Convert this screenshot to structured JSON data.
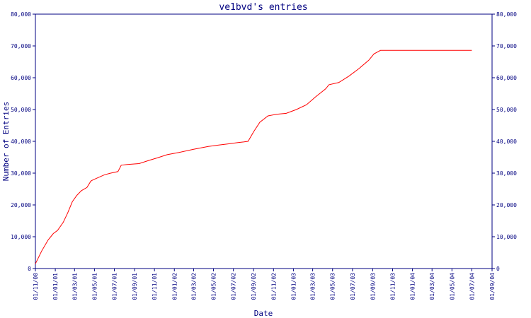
{
  "chart_data": {
    "type": "line",
    "title": "ve1bvd's entries",
    "xlabel": "Date",
    "ylabel": "Number of Entries",
    "ylim": [
      0,
      80000
    ],
    "y_ticks": [
      0,
      10000,
      20000,
      30000,
      40000,
      50000,
      60000,
      70000,
      80000
    ],
    "y_tick_labels": [
      "0",
      "10,000",
      "20,000",
      "30,000",
      "40,000",
      "50,000",
      "60,000",
      "70,000",
      "80,000"
    ],
    "right_axis_mirrors_left": true,
    "x_tick_labels": [
      "01/11/00",
      "01/01/01",
      "01/03/01",
      "01/05/01",
      "01/07/01",
      "01/09/01",
      "01/11/01",
      "01/01/02",
      "01/03/02",
      "01/05/02",
      "01/07/02",
      "01/09/02",
      "01/11/02",
      "01/01/03",
      "01/03/03",
      "01/05/03",
      "01/07/03",
      "01/09/03",
      "01/11/03",
      "01/01/04",
      "01/03/04",
      "01/05/04",
      "01/07/04",
      "01/09/04"
    ],
    "x_tick_dates": [
      "2000-11-01",
      "2001-01-01",
      "2001-03-01",
      "2001-05-01",
      "2001-07-01",
      "2001-09-01",
      "2001-11-01",
      "2002-01-01",
      "2002-03-01",
      "2002-05-01",
      "2002-07-01",
      "2002-09-01",
      "2002-11-01",
      "2003-01-01",
      "2003-03-01",
      "2003-05-01",
      "2003-07-01",
      "2003-09-01",
      "2003-11-01",
      "2004-01-01",
      "2004-03-01",
      "2004-05-01",
      "2004-07-01",
      "2004-09-01"
    ],
    "grid": false,
    "legend": "none",
    "series": [
      {
        "color": "#ff0000",
        "x": [
          "2000-11-01",
          "2000-11-20",
          "2000-12-10",
          "2000-12-26",
          "2001-01-08",
          "2001-01-25",
          "2001-02-08",
          "2001-02-22",
          "2001-03-08",
          "2001-03-22",
          "2001-04-08",
          "2001-04-20",
          "2001-04-25",
          "2001-05-10",
          "2001-06-01",
          "2001-06-20",
          "2001-07-12",
          "2001-07-22",
          "2001-08-10",
          "2001-09-15",
          "2001-10-15",
          "2001-11-10",
          "2001-12-10",
          "2002-01-15",
          "2002-03-01",
          "2002-04-15",
          "2002-05-15",
          "2002-06-15",
          "2002-07-15",
          "2002-08-01",
          "2002-08-15",
          "2002-09-01",
          "2002-09-20",
          "2002-10-15",
          "2002-11-10",
          "2002-11-20",
          "2002-12-10",
          "2003-01-10",
          "2003-02-10",
          "2003-03-10",
          "2003-04-10",
          "2003-04-20",
          "2003-05-20",
          "2003-06-20",
          "2003-07-20",
          "2003-08-20",
          "2003-09-05",
          "2003-09-25",
          "2004-07-01"
        ],
        "y": [
          1500,
          5500,
          9000,
          11000,
          12000,
          14500,
          17500,
          21000,
          23000,
          24500,
          25500,
          27500,
          27800,
          28500,
          29500,
          30000,
          30500,
          32500,
          32700,
          33000,
          34000,
          34800,
          35800,
          36500,
          37500,
          38400,
          38800,
          39200,
          39600,
          39800,
          40000,
          43000,
          46000,
          48000,
          48500,
          48600,
          48800,
          50000,
          51500,
          54000,
          56500,
          57800,
          58500,
          60500,
          62800,
          65500,
          67500,
          68600,
          68600
        ]
      }
    ]
  }
}
